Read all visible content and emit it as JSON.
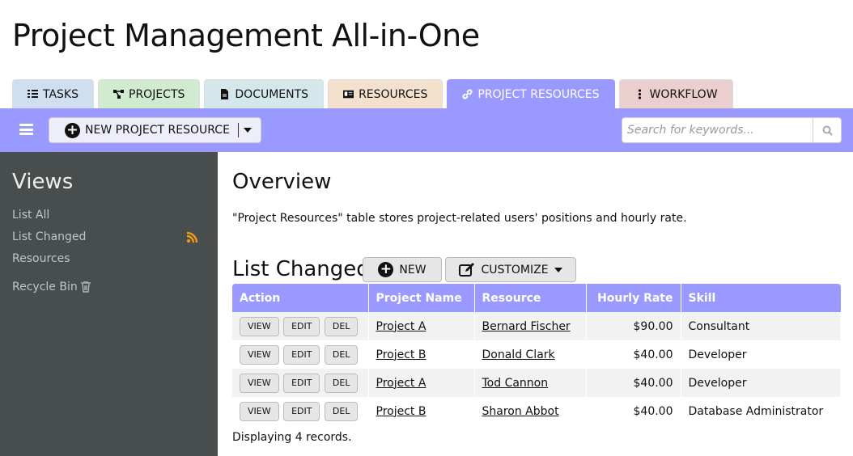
{
  "app_title": "Project Management All-in-One",
  "tabs": [
    {
      "label": "TASKS",
      "icon": "tasks-icon",
      "color": "#cfdff0"
    },
    {
      "label": "PROJECTS",
      "icon": "sitemap-icon",
      "color": "#d0ebd0"
    },
    {
      "label": "DOCUMENTS",
      "icon": "file-icon",
      "color": "#d4e8ec"
    },
    {
      "label": "RESOURCES",
      "icon": "id-card-icon",
      "color": "#f3e0cd"
    },
    {
      "label": "PROJECT RESOURCES",
      "icon": "link-icon",
      "color": "#9999ff",
      "active": true
    },
    {
      "label": "WORKFLOW",
      "icon": "ellipsis-vertical-icon",
      "color": "#ebcfcf"
    }
  ],
  "toolbar": {
    "new_label": "NEW PROJECT RESOURCE",
    "search_placeholder": "Search for keywords..."
  },
  "sidebar": {
    "title": "Views",
    "items": [
      {
        "label": "List All"
      },
      {
        "label": "List Changed",
        "icon": "rss-icon"
      },
      {
        "label": "Resources"
      },
      {
        "label": "Recycle Bin",
        "icon": "trash-icon"
      }
    ]
  },
  "main": {
    "overview_title": "Overview",
    "description": "\"Project Resources\" table stores project-related users' positions and hourly rate.",
    "list_title": "List Changed",
    "new_label": "NEW",
    "customize_label": "CUSTOMIZE",
    "columns": [
      "Action",
      "Project Name",
      "Resource",
      "Hourly Rate",
      "Skill"
    ],
    "action_labels": {
      "view": "VIEW",
      "edit": "EDIT",
      "del": "DEL"
    },
    "rows": [
      {
        "project": "Project A",
        "resource": "Bernard Fischer",
        "rate": "$90.00",
        "skill": "Consultant"
      },
      {
        "project": "Project B",
        "resource": "Donald Clark",
        "rate": "$40.00",
        "skill": "Developer"
      },
      {
        "project": "Project A",
        "resource": "Tod Cannon",
        "rate": "$40.00",
        "skill": "Developer"
      },
      {
        "project": "Project B",
        "resource": "Sharon Abbot",
        "rate": "$40.00",
        "skill": "Database Administrator"
      }
    ],
    "footer": "Displaying 4 records."
  }
}
